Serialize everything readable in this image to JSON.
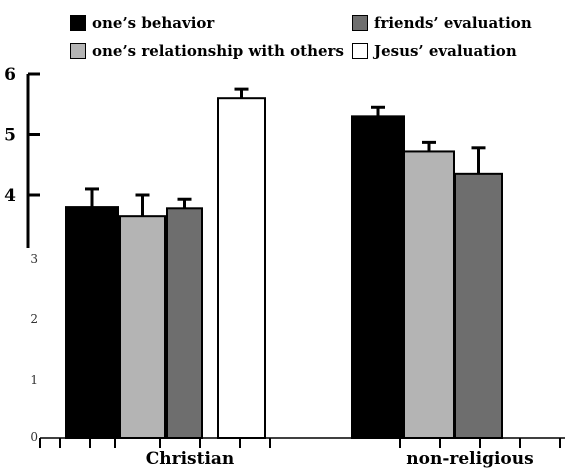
{
  "chart_data": {
    "type": "bar",
    "categories": [
      "Christian",
      "non-religious"
    ],
    "series": [
      {
        "name": "one’s behavior",
        "values": [
          3.8,
          5.3
        ],
        "errors": [
          0.3,
          0.15
        ],
        "color": "#000000"
      },
      {
        "name": "one’s relationship with others",
        "values": [
          3.65,
          4.72
        ],
        "errors": [
          0.35,
          0.15
        ],
        "color": "#b4b4b4"
      },
      {
        "name": "friends’ evaluation",
        "values": [
          3.78,
          4.35
        ],
        "errors": [
          0.15,
          0.43
        ],
        "color": "#6e6e6e"
      },
      {
        "name": "Jesus’ evaluation",
        "values": [
          5.6,
          null
        ],
        "errors": [
          0.15,
          null
        ],
        "color": "#ffffff"
      }
    ],
    "yticks": [
      "0",
      "1",
      "2",
      "3",
      "4",
      "5",
      "6"
    ],
    "ylim": [
      3.2,
      6
    ],
    "legend": "top",
    "grid": false,
    "title": "",
    "xlabel": "",
    "ylabel": ""
  }
}
